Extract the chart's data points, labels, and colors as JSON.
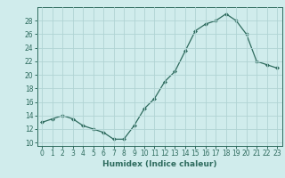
{
  "x": [
    0,
    1,
    2,
    3,
    4,
    5,
    6,
    7,
    8,
    9,
    10,
    11,
    12,
    13,
    14,
    15,
    16,
    17,
    18,
    19,
    20,
    21,
    22,
    23
  ],
  "y": [
    13,
    13.5,
    14,
    13.5,
    12.5,
    12,
    11.5,
    10.5,
    10.5,
    12.5,
    15,
    16.5,
    19,
    20.5,
    23.5,
    26.5,
    27.5,
    28,
    29,
    28,
    26,
    22,
    21.5,
    21
  ],
  "line_color": "#2e6b5e",
  "marker": "D",
  "marker_size": 2,
  "bg_color": "#d0ecec",
  "grid_color": "#b0d4d4",
  "xlabel": "Humidex (Indice chaleur)",
  "xlim": [
    -0.5,
    23.5
  ],
  "ylim": [
    9.5,
    30
  ],
  "yticks": [
    10,
    12,
    14,
    16,
    18,
    20,
    22,
    24,
    26,
    28
  ],
  "xtick_labels": [
    "0",
    "1",
    "2",
    "3",
    "4",
    "5",
    "6",
    "7",
    "8",
    "9",
    "10",
    "11",
    "12",
    "13",
    "14",
    "15",
    "16",
    "17",
    "18",
    "19",
    "20",
    "21",
    "22",
    "23"
  ],
  "label_fontsize": 6.5,
  "tick_fontsize": 5.5
}
